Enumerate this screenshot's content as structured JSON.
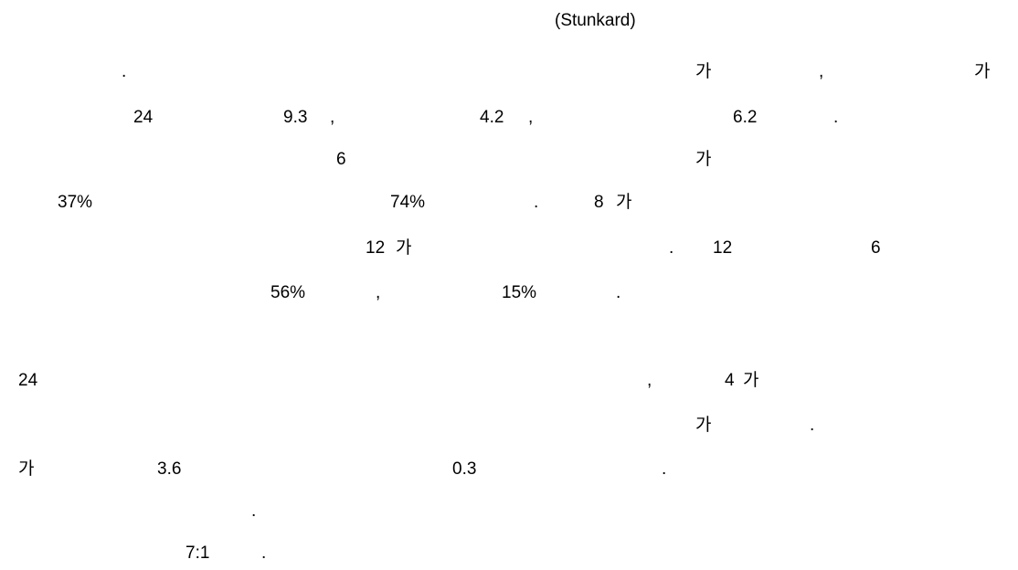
{
  "document": {
    "lines": [
      {
        "fragments": [
          "(Stunkard)"
        ]
      },
      {
        "fragments": [
          ".",
          "가",
          ",",
          "가"
        ]
      },
      {
        "fragments": [
          "24",
          "9.3",
          ",",
          "4.2",
          ",",
          "6.2",
          "."
        ]
      },
      {
        "fragments": [
          "6",
          "가"
        ]
      },
      {
        "fragments": [
          "37%",
          "74%",
          ".",
          "8",
          "가"
        ]
      },
      {
        "fragments": [
          "12",
          "가",
          ".",
          "12",
          "6"
        ]
      },
      {
        "fragments": [
          "56%",
          ",",
          "15%",
          "."
        ]
      },
      {
        "fragments": [
          "24",
          ",",
          "4",
          "가"
        ]
      },
      {
        "fragments": [
          "가",
          "."
        ]
      },
      {
        "fragments": [
          "가",
          "3.6",
          "0.3",
          "."
        ]
      },
      {
        "fragments": [
          "."
        ]
      },
      {
        "fragments": [
          "7:1",
          "."
        ]
      }
    ]
  }
}
